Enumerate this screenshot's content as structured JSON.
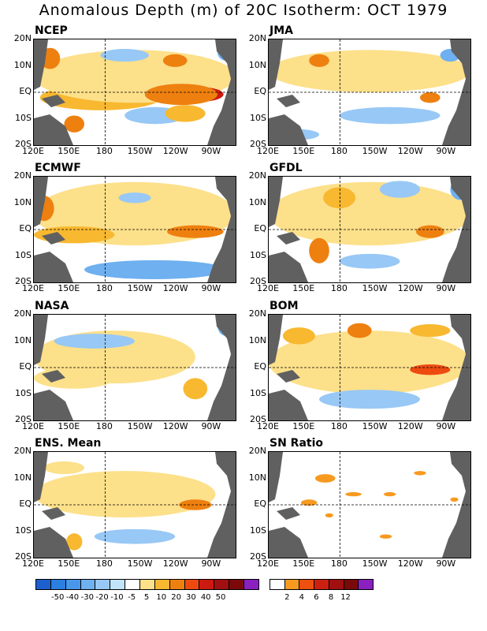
{
  "title": "Anomalous Depth (m) of 20C Isotherm: OCT 1979",
  "lat_labels": [
    "20N",
    "10N",
    "EQ",
    "10S",
    "20S"
  ],
  "lon_labels": [
    "120E",
    "150E",
    "180",
    "150W",
    "120W",
    "90W"
  ],
  "panels": [
    {
      "name": "NCEP",
      "label": "NCEP"
    },
    {
      "name": "JMA",
      "label": "JMA"
    },
    {
      "name": "ECMWF",
      "label": "ECMWF"
    },
    {
      "name": "GFDL",
      "label": "GFDL"
    },
    {
      "name": "NASA",
      "label": "NASA"
    },
    {
      "name": "BOM",
      "label": "BOM"
    },
    {
      "name": "ENS",
      "label": "ENS. Mean"
    },
    {
      "name": "SN",
      "label": "SN Ratio"
    }
  ],
  "colors": {
    "land": "#606060",
    "anomaly_scale": [
      "#1e5fcf",
      "#2a7fe0",
      "#4a97ea",
      "#6eb0f0",
      "#98c8f5",
      "#c2e4f8",
      "#ffffff",
      "#fde08a",
      "#f8b830",
      "#ee8010",
      "#ee4a10",
      "#cc1a10",
      "#a01010",
      "#7a0a0a",
      "#8a20c0"
    ],
    "sn_scale": [
      "#ffffff",
      "#f89a20",
      "#ee5010",
      "#cc2010",
      "#a01010",
      "#7a0a0a",
      "#8a20c0"
    ]
  },
  "anomaly_labels": [
    "-50",
    "-40",
    "-30",
    "-20",
    "-10",
    "-5",
    "5",
    "10",
    "20",
    "30",
    "40",
    "50"
  ],
  "sn_labels": [
    "2",
    "4",
    "6",
    "8",
    "12"
  ]
}
